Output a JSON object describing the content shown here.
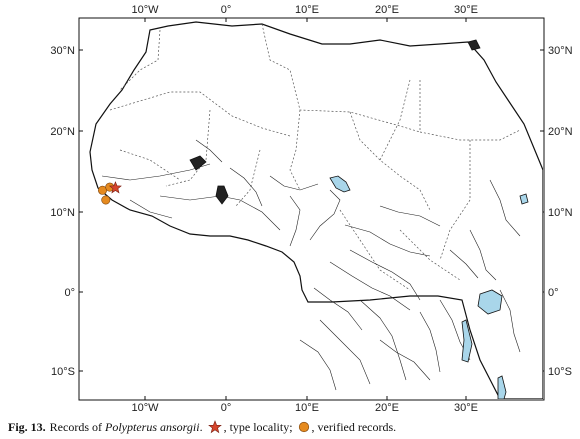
{
  "map": {
    "top_lon_labels": [
      "10°W",
      "0°",
      "10°E",
      "20°E",
      "30°E"
    ],
    "bottom_lon_labels": [
      "10°W",
      "0°",
      "10°E",
      "20°E",
      "30°E"
    ],
    "left_lat_labels": [
      "30°N",
      "20°N",
      "10°N",
      "0°",
      "10°S"
    ],
    "right_lat_labels": [
      "30°N",
      "20°N",
      "10°N",
      "0°",
      "10°S"
    ],
    "colors": {
      "land": "#ffffff",
      "outline": "#111111",
      "borders": "#555555",
      "water": "#a9d6ea",
      "type_locality_star": "#d6452c",
      "verified_record": "#e58a1f"
    },
    "markers": [
      {
        "kind": "verified-record",
        "lon": -15.3,
        "lat": 12.6
      },
      {
        "kind": "verified-record",
        "lon": -14.4,
        "lat": 13.0
      },
      {
        "kind": "verified-record",
        "lon": -14.9,
        "lat": 11.4
      },
      {
        "kind": "type-locality",
        "lon": -13.7,
        "lat": 12.9
      }
    ]
  },
  "caption": {
    "fig_label": "Fig. 13.",
    "text_before": "Records of",
    "species": "Polypterus ansorgii",
    "after_species": ".",
    "type_text": ", type locality;",
    "verified_text": ", verified records."
  }
}
